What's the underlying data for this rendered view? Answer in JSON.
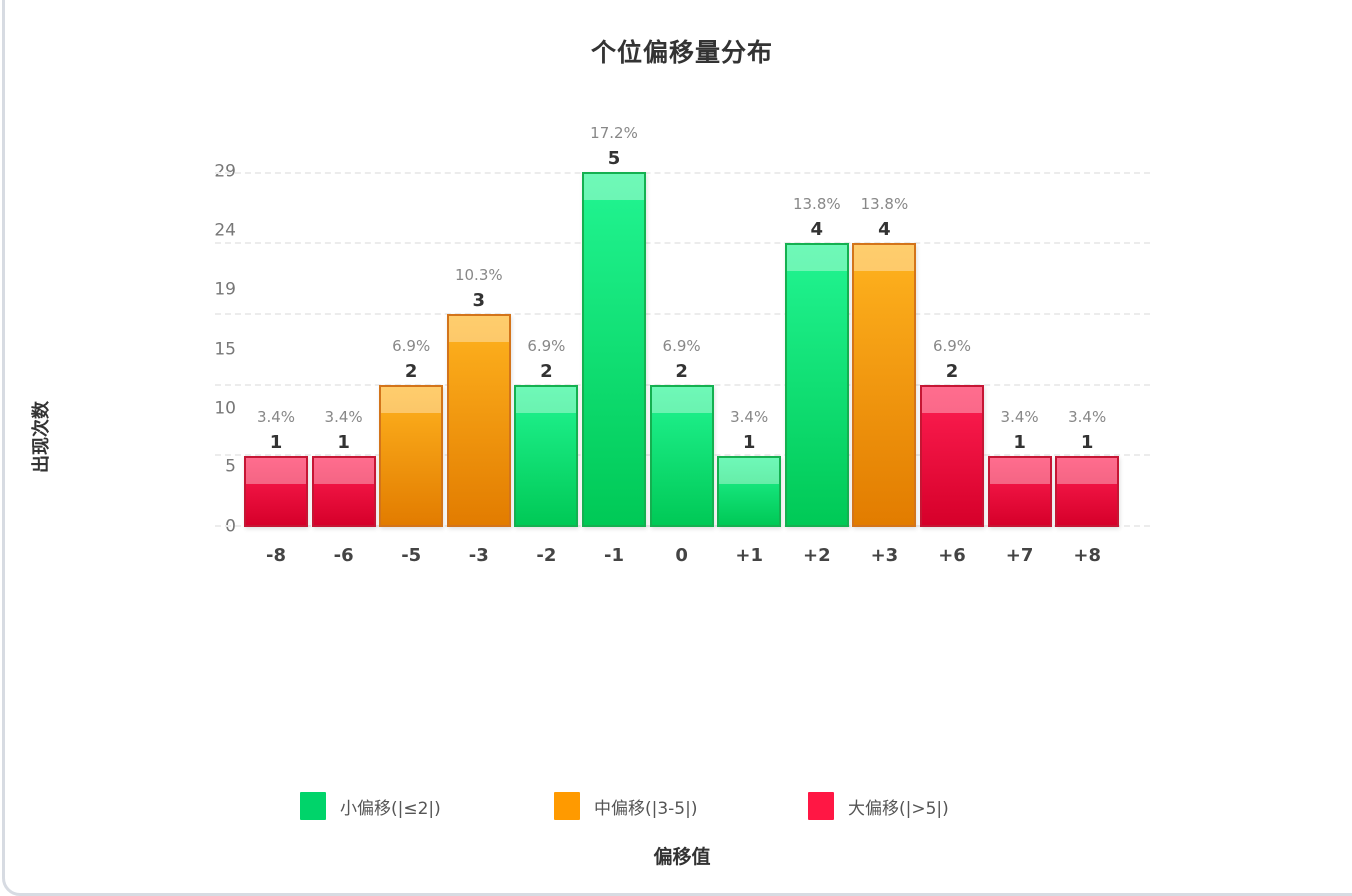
{
  "chart": {
    "title": "个位偏移量分布",
    "y_axis_title": "出现次数",
    "x_axis_title": "偏移值",
    "y_ticks": [
      "29",
      "24",
      "19",
      "15",
      "10",
      "5",
      "0"
    ],
    "legend": [
      {
        "label": "小偏移(|≤2|)",
        "color": "#00d46a"
      },
      {
        "label": "中偏移(|3-5|)",
        "color": "#ff9a00"
      },
      {
        "label": "大偏移(|>5|)",
        "color": "#ff1744"
      }
    ],
    "bars": [
      {
        "x": "-8",
        "count": "1",
        "pct": "3.4%",
        "category": "large"
      },
      {
        "x": "-6",
        "count": "1",
        "pct": "3.4%",
        "category": "large"
      },
      {
        "x": "-5",
        "count": "2",
        "pct": "6.9%",
        "category": "mid"
      },
      {
        "x": "-3",
        "count": "3",
        "pct": "10.3%",
        "category": "mid"
      },
      {
        "x": "-2",
        "count": "2",
        "pct": "6.9%",
        "category": "small"
      },
      {
        "x": "-1",
        "count": "5",
        "pct": "17.2%",
        "category": "small"
      },
      {
        "x": "0",
        "count": "2",
        "pct": "6.9%",
        "category": "small"
      },
      {
        "x": "+1",
        "count": "1",
        "pct": "3.4%",
        "category": "small"
      },
      {
        "x": "+2",
        "count": "4",
        "pct": "13.8%",
        "category": "small"
      },
      {
        "x": "+3",
        "count": "4",
        "pct": "13.8%",
        "category": "mid"
      },
      {
        "x": "+6",
        "count": "2",
        "pct": "6.9%",
        "category": "large"
      },
      {
        "x": "+7",
        "count": "1",
        "pct": "3.4%",
        "category": "large"
      },
      {
        "x": "+8",
        "count": "1",
        "pct": "3.4%",
        "category": "large"
      }
    ]
  },
  "chart_data": {
    "type": "bar",
    "title": "个位偏移量分布",
    "xlabel": "偏移值",
    "ylabel": "出现次数",
    "categories": [
      "-8",
      "-6",
      "-5",
      "-3",
      "-2",
      "-1",
      "0",
      "+1",
      "+2",
      "+3",
      "+6",
      "+7",
      "+8"
    ],
    "values": [
      1,
      1,
      2,
      3,
      2,
      5,
      2,
      1,
      4,
      4,
      2,
      1,
      1
    ],
    "percentages": [
      3.4,
      3.4,
      6.9,
      10.3,
      6.9,
      17.2,
      6.9,
      3.4,
      13.8,
      13.8,
      6.9,
      3.4,
      3.4
    ],
    "bar_categories": [
      "大偏移(|>5|)",
      "大偏移(|>5|)",
      "中偏移(|3-5|)",
      "中偏移(|3-5|)",
      "小偏移(|≤2|)",
      "小偏移(|≤2|)",
      "小偏移(|≤2|)",
      "小偏移(|≤2|)",
      "小偏移(|≤2|)",
      "中偏移(|3-5|)",
      "大偏移(|>5|)",
      "大偏移(|>5|)",
      "大偏移(|>5|)"
    ],
    "y_tick_labels": [
      "0",
      "5",
      "10",
      "15",
      "19",
      "24",
      "29"
    ],
    "legend": [
      "小偏移(|≤2|)",
      "中偏移(|3-5|)",
      "大偏移(|>5|)"
    ],
    "legend_position": "bottom",
    "grid": true,
    "ylim": [
      0,
      5
    ]
  }
}
